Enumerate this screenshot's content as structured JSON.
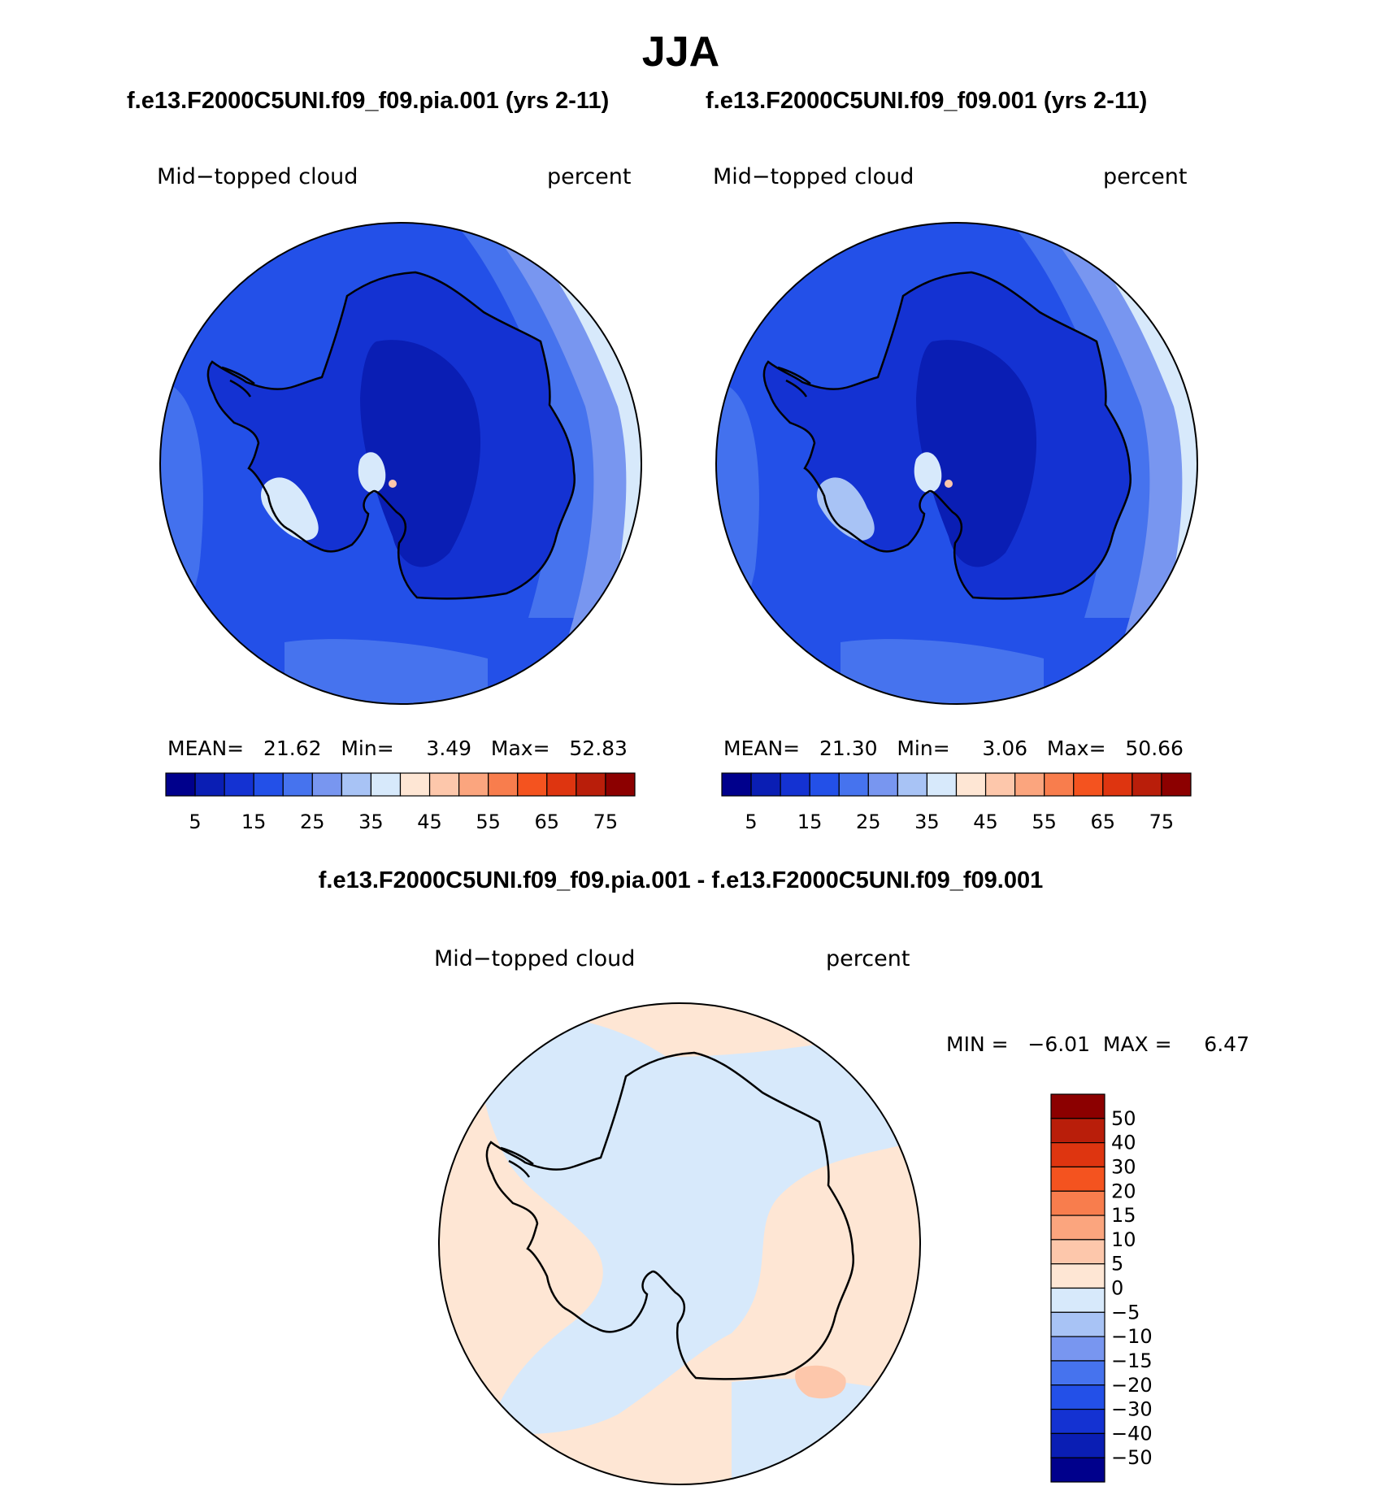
{
  "main_title": "JJA",
  "left_panel": {
    "case_title": "f.e13.F2000C5UNI.f09_f09.pia.001 (yrs 2-11)",
    "variable": "Mid−topped cloud",
    "units": "percent",
    "stats": "MEAN=   21.62   Min=     3.49   Max=   52.83"
  },
  "right_panel": {
    "case_title": "f.e13.F2000C5UNI.f09_f09.001 (yrs 2-11)",
    "variable": "Mid−topped cloud",
    "units": "percent",
    "stats": "MEAN=   21.30   Min=     3.06   Max=   50.66"
  },
  "diff_panel": {
    "title": "f.e13.F2000C5UNI.f09_f09.pia.001 - f.e13.F2000C5UNI.f09_f09.001",
    "variable": "Mid−topped cloud",
    "units": "percent",
    "stats": "MIN =   −6.01  MAX =     6.47"
  },
  "abs_colorbar": {
    "colors": [
      "#00008c",
      "#0a1eb4",
      "#1432d2",
      "#2350e8",
      "#4673ee",
      "#7896f0",
      "#a8c3f5",
      "#d7e9fb",
      "#fee6d4",
      "#fdc7ab",
      "#fba57e",
      "#f87d4d",
      "#f4531f",
      "#de3510",
      "#b91e0a",
      "#8c0000"
    ],
    "tick_labels": [
      "5",
      "15",
      "25",
      "35",
      "45",
      "55",
      "65",
      "75"
    ]
  },
  "diff_colorbar": {
    "colors": [
      "#8c0000",
      "#b91e0a",
      "#de3510",
      "#f4531f",
      "#f87d4d",
      "#fba57e",
      "#fdc7ab",
      "#fee6d4",
      "#d7e9fb",
      "#a8c3f5",
      "#7896f0",
      "#4673ee",
      "#2350e8",
      "#1432d2",
      "#0a1eb4",
      "#00008c"
    ],
    "tick_labels": [
      "50",
      "40",
      "30",
      "20",
      "15",
      "10",
      "5",
      "0",
      "−5",
      "−10",
      "−15",
      "−20",
      "−30",
      "−40",
      "−50"
    ]
  },
  "map_colors": {
    "abs_deep": "#0a1eb4",
    "abs_dark": "#1432d2",
    "abs_mid": "#2350e8",
    "abs_bright": "#4673ee",
    "abs_light": "#7896f0",
    "abs_pale": "#a8c3f5",
    "abs_faint": "#d7e9fb",
    "abs_warm": "#fee6d4",
    "abs_warm2": "#fdc7ab",
    "diff_neg": "#d7e9fb",
    "diff_pos": "#fee6d4",
    "diff_pos2": "#fdc7ab"
  }
}
